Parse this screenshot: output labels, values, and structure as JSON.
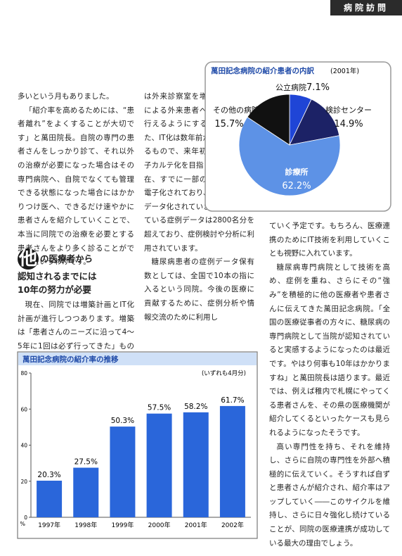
{
  "header": {
    "section": "病院訪問"
  },
  "article": {
    "column1": [
      "多いという月もありました。",
      "「紹介率を高めるためには、“患者離れ”をよくすることが大切です」と萬田院長。自院の専門の患者さんをしっかり診て、それ以外の治療が必要になった場合はその専門病院へ、自院でなくても管理できる状態になった場合にはかかりつけ医へ、できるだけ速やかに患者さんを紹介していくことで、本当に同院での治療を必要とする患者さんをより多く診ることができるというわけです。"
    ],
    "heading": [
      "他",
      "の医療者から",
      "認知されるまでには",
      "10年の努力が必要"
    ],
    "column1_after": [
      "現在、同院では増築計画とIT化計画が進行しつつあります。増築は「患者さんのニーズに沿って4〜5年に1回は必ず行ってきた」ものであり、今回"
    ],
    "column2": [
      "は外来診察室を増やし、看護師による外来患者への療養指導を行えるようにするそうです。また、IT化は数年前から進めつつあるもので、来年初頭を目途に電子カルテ化を目指しています。現在、すでに一部の患者データが電子化されており、症例はすべてデータ化されています。保存されている症例データは2800名分を超えており、症例検討や分析に利用されています。",
      "糖尿病患者の症例データ保有数としては、全国で10本の指に入るという同院。今後の医療に貢献するために、症例分析や情報交流のために利用し"
    ],
    "column3": [
      "ていく予定です。もちろん、医療連携のためにIT技術を利用していくことも視野に入れています。",
      "糖尿病専門病院として技術を高め、症例を重ね、さらにその“強み”を積極的に他の医療者や患者さんに伝えてきた萬田記念病院。「全国の医療従事者の方々に、糖尿病の専門病院として当院が認知されていると実感するようになったのは最近です。やはり何事も10年はかかりますね」と萬田院長は語ります。最近では、例えば稚内で札幌にやってくる患者さんを、その県の医療機関が紹介してくるといったケースも見られるようになったそうです。",
      "高い専門性を持ち、それを維持し、さらに自院の専門性を外部へ積極的に伝えていく。そうすれば自ずと患者さんが紹介され、紹介率はアップしていく――このサイクルを維持し、さらに日々強化し続けていることが、同院の医療連携が成功している最大の理由でしょう。"
    ]
  },
  "chart_data": [
    {
      "type": "pie",
      "title": "萬田記念病院の紹介患者の内訳",
      "subtitle": "(2001年)",
      "categories": [
        "公立病院",
        "検診センター",
        "診療所",
        "その他の病院"
      ],
      "values": [
        7.1,
        14.9,
        62.2,
        15.7
      ],
      "value_labels": [
        "7.1%",
        "14.9%",
        "62.2%",
        "15.7%"
      ],
      "colors": [
        "#1f45d6",
        "#1c2266",
        "#5d92e6",
        "#111111"
      ]
    },
    {
      "type": "bar",
      "title": "萬田記念病院の紹介率の推移",
      "note": "(いずれも4月分)",
      "categories": [
        "1997年",
        "1998年",
        "1999年",
        "2000年",
        "2001年",
        "2002年"
      ],
      "values": [
        20.3,
        27.5,
        50.3,
        57.5,
        58.2,
        61.7
      ],
      "value_labels": [
        "20.3%",
        "27.5%",
        "50.3%",
        "57.5%",
        "58.2%",
        "61.7%"
      ],
      "color": "#2a66da",
      "y_label": "%",
      "ylim": [
        0,
        80
      ],
      "yticks": [
        0,
        20,
        40,
        60,
        80
      ],
      "grid": false
    }
  ]
}
